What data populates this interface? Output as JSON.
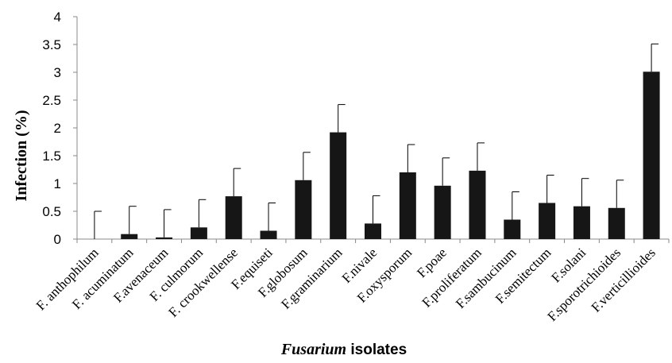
{
  "chart_data": {
    "type": "bar",
    "title": "",
    "xlabel_italic": "Fusarium",
    "xlabel_rest": " isolates",
    "ylabel": "Infection (%)",
    "ylim": [
      0,
      4
    ],
    "yticks": [
      "0",
      "0.5",
      "1",
      "1.5",
      "2",
      "2.5",
      "3",
      "3.5",
      "4"
    ],
    "grid": false,
    "bar_color": "#161616",
    "categories": [
      "F. anthophilum",
      "F. acuminatum",
      "F.avenaceum",
      "F. culmorum",
      "F. crookwellense",
      "F.equiseti",
      "F.globosum",
      "F.graminarium",
      "F.nivale",
      "F.oxysporum",
      "F.poae",
      "F.proliferatum",
      "F.sambucinum",
      "F.semitectum",
      "F.solani",
      "F.sporotrichioides",
      "F.verticillioides"
    ],
    "values": [
      0.0,
      0.09,
      0.03,
      0.21,
      0.77,
      0.15,
      1.06,
      1.92,
      0.28,
      1.2,
      0.96,
      1.23,
      0.35,
      0.65,
      0.59,
      0.56,
      3.01
    ],
    "errors": [
      0.5,
      0.5,
      0.5,
      0.5,
      0.5,
      0.5,
      0.5,
      0.5,
      0.5,
      0.5,
      0.5,
      0.5,
      0.5,
      0.5,
      0.5,
      0.5,
      0.5
    ]
  }
}
